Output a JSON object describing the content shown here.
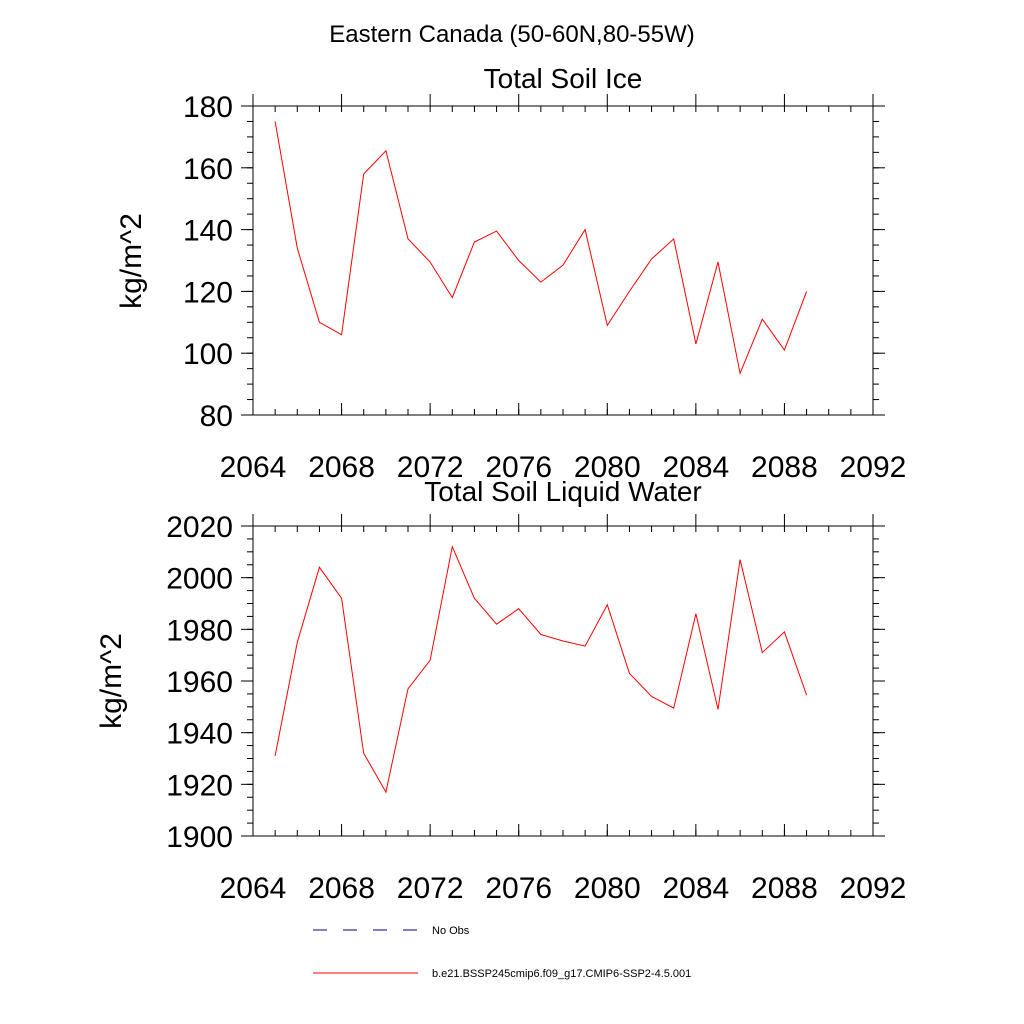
{
  "figure": {
    "title": "Eastern Canada (50-60N,80-55W)"
  },
  "chart_data": [
    {
      "type": "line",
      "title": "Total Soil Ice",
      "xlabel": "",
      "ylabel": "kg/m^2",
      "xlim": [
        2064,
        2092
      ],
      "ylim": [
        80,
        180
      ],
      "x_ticks": [
        2064,
        2068,
        2072,
        2076,
        2080,
        2084,
        2088,
        2092
      ],
      "y_ticks": [
        80,
        100,
        120,
        140,
        160,
        180
      ],
      "x_minor_step": 1,
      "y_minor_step": 5,
      "grid": false,
      "series": [
        {
          "name": "b.e21.BSSP245cmip6.f09_g17.CMIP6-SSP2-4.5.001",
          "color": "#ff0000",
          "x": [
            2065,
            2066,
            2067,
            2068,
            2069,
            2070,
            2071,
            2072,
            2073,
            2074,
            2075,
            2076,
            2077,
            2078,
            2079,
            2080,
            2081,
            2082,
            2083,
            2084,
            2085,
            2086,
            2087,
            2088,
            2089
          ],
          "values": [
            175,
            134,
            110,
            106,
            158,
            165.5,
            137,
            129.5,
            118,
            136,
            139.5,
            130,
            123,
            128.5,
            140,
            109,
            120,
            130.5,
            137,
            103,
            129.5,
            93.5,
            111,
            101,
            120
          ]
        }
      ]
    },
    {
      "type": "line",
      "title": "Total Soil Liquid Water",
      "xlabel": "",
      "ylabel": "kg/m^2",
      "xlim": [
        2064,
        2092
      ],
      "ylim": [
        1900,
        2020
      ],
      "x_ticks": [
        2064,
        2068,
        2072,
        2076,
        2080,
        2084,
        2088,
        2092
      ],
      "y_ticks": [
        1900,
        1920,
        1940,
        1960,
        1980,
        2000,
        2020
      ],
      "x_minor_step": 1,
      "y_minor_step": 5,
      "grid": false,
      "series": [
        {
          "name": "b.e21.BSSP245cmip6.f09_g17.CMIP6-SSP2-4.5.001",
          "color": "#ff0000",
          "x": [
            2065,
            2066,
            2067,
            2068,
            2069,
            2070,
            2071,
            2072,
            2073,
            2074,
            2075,
            2076,
            2077,
            2078,
            2079,
            2080,
            2081,
            2082,
            2083,
            2084,
            2085,
            2086,
            2087,
            2088,
            2089
          ],
          "values": [
            1931,
            1975,
            2004,
            1992,
            1932,
            1917,
            1957,
            1968,
            2012,
            1992,
            1982,
            1988,
            1978,
            1975.5,
            1973.5,
            1989.5,
            1963,
            1954,
            1949.5,
            1986,
            1949,
            2007,
            1971,
            1979,
            1954.5
          ]
        }
      ]
    }
  ],
  "legend": {
    "placement": "bottom",
    "entries": [
      {
        "label": "No Obs",
        "color": "#000080",
        "style": "dashed"
      },
      {
        "label": "b.e21.BSSP245cmip6.f09_g17.CMIP6-SSP2-4.5.001",
        "color": "#ff0000",
        "style": "solid"
      }
    ]
  }
}
